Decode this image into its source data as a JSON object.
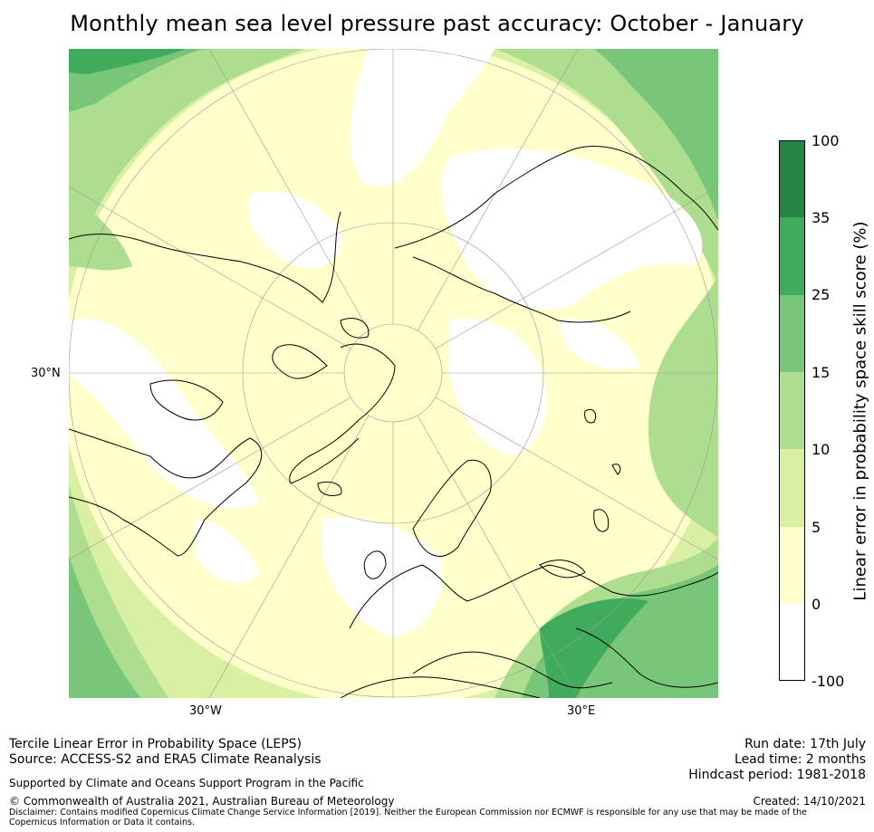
{
  "title": "Monthly mean sea level pressure past accuracy: October - January",
  "map": {
    "projection": "north-polar-stereographic",
    "lat_labels": [
      "30°N"
    ],
    "lon_labels": [
      "30°W",
      "30°E"
    ]
  },
  "colorbar": {
    "label": "Linear error in probability space skill score (%)",
    "ticks": [
      "100",
      "35",
      "25",
      "15",
      "10",
      "5",
      "0",
      "-100"
    ],
    "bins": [
      {
        "range": "-100 to 0",
        "color": "#ffffff"
      },
      {
        "range": "0 to 5",
        "color": "#ffffcc"
      },
      {
        "range": "5 to 10",
        "color": "#d9f0a3"
      },
      {
        "range": "10 to 15",
        "color": "#addd8e"
      },
      {
        "range": "15 to 25",
        "color": "#78c679"
      },
      {
        "range": "25 to 35",
        "color": "#41ab5d"
      },
      {
        "range": "35 to 100",
        "color": "#238443"
      }
    ]
  },
  "footer": {
    "method": "Tercile Linear Error in Probability Space (LEPS)",
    "source": "Source: ACCESS-S2 and ERA5 Climate Reanalysis",
    "support": "Supported by Climate and Oceans Support Program in the Pacific",
    "copyright": "© Commonwealth of Australia 2021, Australian Bureau of Meteorology",
    "disclaimer": "Disclaimer: Contains modified Copernicus Climate Change Service Information [2019]. Neither the European Commission nor ECMWF is responsible for any use that may be made of the Copernicus Information or Data it contains.",
    "run_date": "Run date: 17th July",
    "lead_time": "Lead time: 2 months",
    "hindcast": "Hindcast period: 1981-2018",
    "created": "Created: 14/10/2021"
  }
}
